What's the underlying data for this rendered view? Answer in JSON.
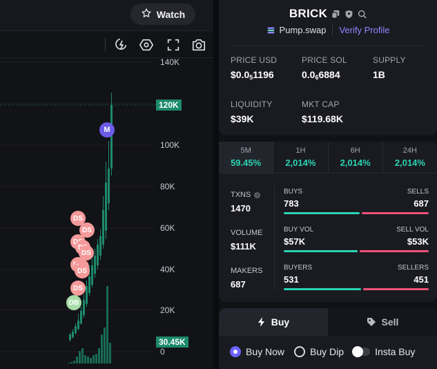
{
  "header": {
    "watch_label": "Watch"
  },
  "toolbar": {
    "icons": [
      "indicator-icon",
      "settings-hex-icon",
      "fullscreen-icon",
      "camera-icon"
    ]
  },
  "chart": {
    "y_ticks": [
      "140K",
      "120K",
      "100K",
      "80K",
      "60K",
      "40K",
      "20K",
      "0"
    ],
    "current_price_tag": "120K",
    "volume_tag": "30.45K",
    "markers": [
      "DS",
      "DS",
      "DS",
      "DS",
      "DS",
      "DS",
      "DS",
      "DS",
      "DS",
      "DB",
      "M"
    ],
    "colors": {
      "up": "#1d8a6c",
      "volume": "#186b55"
    }
  },
  "token": {
    "name": "BRICK",
    "platform": "Pump.swap",
    "verify_label": "Verify Profile",
    "stats": [
      {
        "label": "PRICE USD",
        "value_prefix": "$0.0",
        "value_sub": "5",
        "value_rest": "1196"
      },
      {
        "label": "PRICE SOL",
        "value_prefix": "0.0",
        "value_sub": "6",
        "value_rest": "6884"
      },
      {
        "label": "SUPPLY",
        "value": "1B"
      },
      {
        "label": "LIQUIDITY",
        "value": "$39K"
      },
      {
        "label": "MKT CAP",
        "value": "$119.68K"
      }
    ]
  },
  "periods": [
    {
      "label": "5M",
      "value": "59.45%"
    },
    {
      "label": "1H",
      "value": "2,014%"
    },
    {
      "label": "6H",
      "value": "2,014%"
    },
    {
      "label": "24H",
      "value": "2,014%"
    }
  ],
  "metrics": {
    "txns": {
      "label": "TXNS",
      "value": "1470"
    },
    "volume": {
      "label": "VOLUME",
      "value": "$111K"
    },
    "makers": {
      "label": "MAKERS",
      "value": "687"
    }
  },
  "splits": {
    "txns": {
      "left_label": "BUYS",
      "right_label": "SELLS",
      "left_value": "783",
      "right_value": "687",
      "left_fraction": 0.533
    },
    "volume": {
      "left_label": "BUY VOL",
      "right_label": "SELL VOL",
      "left_value": "$57K",
      "right_value": "$53K",
      "left_fraction": 0.518
    },
    "makers": {
      "left_label": "BUYERS",
      "right_label": "SELLERS",
      "left_value": "531",
      "right_value": "451",
      "left_fraction": 0.541
    }
  },
  "trade": {
    "buy_label": "Buy",
    "sell_label": "Sell",
    "order_types": [
      "Buy Now",
      "Buy Dip"
    ],
    "insta_buy_label": "Insta Buy"
  }
}
